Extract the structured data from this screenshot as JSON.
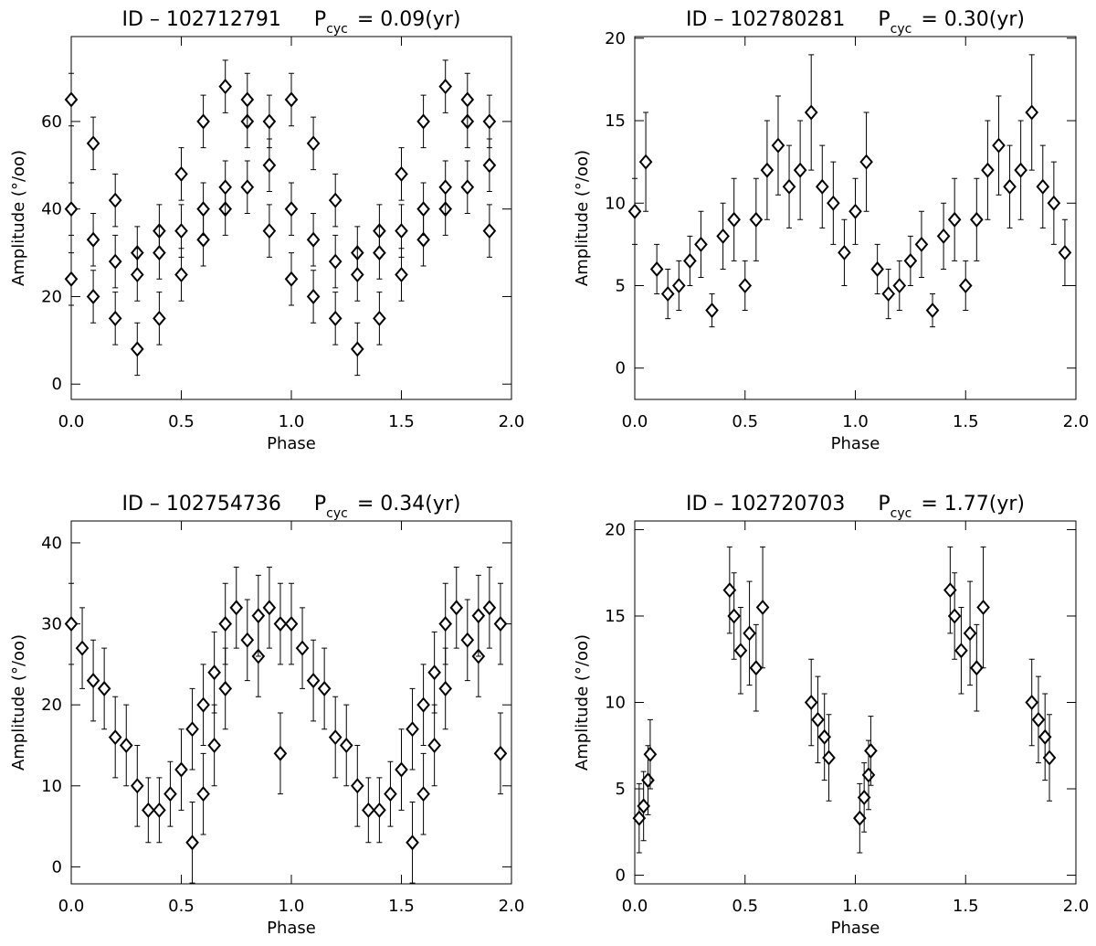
{
  "chart_data": [
    {
      "type": "scatter",
      "title_id": "ID – 102712791",
      "title_p": "P",
      "title_sub": "cyc",
      "title_value": "=  0.09(yr)",
      "xlabel": "Phase",
      "ylabel": "Amplitude (°/oo)",
      "color": "#000000",
      "xlim": [
        0,
        2
      ],
      "ylim": [
        -3.5,
        79.4
      ],
      "xticks": [
        {
          "value": 0,
          "label": "0.0"
        },
        {
          "value": 0.5,
          "label": "0.5"
        },
        {
          "value": 1,
          "label": "1.0"
        },
        {
          "value": 1.5,
          "label": "1.5"
        },
        {
          "value": 2,
          "label": "2.0"
        }
      ],
      "yticks": [
        0,
        20,
        40,
        60
      ],
      "x": [
        0.0,
        0.1,
        0.2,
        0.3,
        0.4,
        0.5,
        0.6,
        0.7,
        0.8,
        0.9,
        0.0,
        0.1,
        0.2,
        0.3,
        0.4,
        0.5,
        0.6,
        0.7,
        0.8,
        0.9,
        0.0,
        0.1,
        0.2,
        0.3,
        0.4,
        0.5,
        0.6,
        0.7,
        0.8,
        0.9,
        1.0,
        1.1,
        1.2,
        1.3,
        1.4,
        1.5,
        1.6,
        1.7,
        1.8,
        1.9,
        1.0,
        1.1,
        1.2,
        1.3,
        1.4,
        1.5,
        1.6,
        1.7,
        1.8,
        1.9,
        1.0,
        1.1,
        1.2,
        1.3,
        1.4,
        1.5,
        1.6,
        1.7,
        1.8,
        1.9
      ],
      "values": [
        65,
        55,
        42,
        30,
        35,
        48,
        60,
        68,
        60,
        50,
        24,
        20,
        15,
        8,
        15,
        25,
        33,
        40,
        45,
        35,
        40,
        33,
        28,
        25,
        30,
        35,
        40,
        45,
        65,
        60,
        65,
        55,
        42,
        30,
        35,
        48,
        60,
        68,
        60,
        50,
        24,
        20,
        15,
        8,
        15,
        25,
        33,
        40,
        45,
        35,
        40,
        33,
        28,
        25,
        30,
        35,
        40,
        45,
        65,
        60
      ],
      "errors": [
        6,
        6,
        6,
        6,
        6,
        6,
        6,
        6,
        6,
        6,
        6,
        6,
        6,
        6,
        6,
        6,
        6,
        6,
        6,
        6,
        6,
        6,
        6,
        6,
        6,
        6,
        6,
        6,
        6,
        6,
        6,
        6,
        6,
        6,
        6,
        6,
        6,
        6,
        6,
        6,
        6,
        6,
        6,
        6,
        6,
        6,
        6,
        6,
        6,
        6,
        6,
        6,
        6,
        6,
        6,
        6,
        6,
        6,
        6,
        6
      ]
    },
    {
      "type": "scatter",
      "title_id": "ID – 102780281",
      "title_p": "P",
      "title_sub": "cyc",
      "title_value": "=  0.30(yr)",
      "xlabel": "Phase",
      "ylabel": "Amplitude (°/oo)",
      "color": "#000000",
      "xlim": [
        0,
        2
      ],
      "ylim": [
        -1.9,
        20.1
      ],
      "xticks": [
        {
          "value": 0,
          "label": "0.0"
        },
        {
          "value": 0.5,
          "label": "0.5"
        },
        {
          "value": 1,
          "label": "1.0"
        },
        {
          "value": 1.5,
          "label": "1.5"
        },
        {
          "value": 2,
          "label": "2.0"
        }
      ],
      "yticks": [
        0,
        5,
        10,
        15,
        20
      ],
      "x": [
        0.0,
        0.05,
        0.1,
        0.15,
        0.2,
        0.25,
        0.3,
        0.35,
        0.4,
        0.45,
        0.5,
        0.55,
        0.6,
        0.65,
        0.7,
        0.75,
        0.8,
        0.85,
        0.9,
        0.95,
        1.0,
        1.05,
        1.1,
        1.15,
        1.2,
        1.25,
        1.3,
        1.35,
        1.4,
        1.45,
        1.5,
        1.55,
        1.6,
        1.65,
        1.7,
        1.75,
        1.8,
        1.85,
        1.9,
        1.95
      ],
      "values": [
        9.5,
        12.5,
        6,
        4.5,
        5,
        6.5,
        7.5,
        3.5,
        8,
        9,
        5,
        9,
        12,
        13.5,
        11,
        12,
        15.5,
        11,
        10,
        7,
        9.5,
        12.5,
        6,
        4.5,
        5,
        6.5,
        7.5,
        3.5,
        8,
        9,
        5,
        9,
        12,
        13.5,
        11,
        12,
        15.5,
        11,
        10,
        7
      ],
      "errors": [
        2,
        3,
        1.5,
        1.5,
        1.5,
        1.5,
        2,
        1,
        2,
        2.5,
        1.5,
        2.5,
        3,
        3,
        2.5,
        3,
        3.5,
        2.5,
        2.5,
        2,
        2,
        3,
        1.5,
        1.5,
        1.5,
        1.5,
        2,
        1,
        2,
        2.5,
        1.5,
        2.5,
        3,
        3,
        2.5,
        3,
        3.5,
        2.5,
        2.5,
        2
      ]
    },
    {
      "type": "scatter",
      "title_id": "ID – 102754736",
      "title_p": "P",
      "title_sub": "cyc",
      "title_value": "=  0.34(yr)",
      "xlabel": "Phase",
      "ylabel": "Amplitude (°/oo)",
      "color": "#000000",
      "xlim": [
        0,
        2
      ],
      "ylim": [
        -2.1,
        42.7
      ],
      "xticks": [
        {
          "value": 0,
          "label": "0.0"
        },
        {
          "value": 0.5,
          "label": "0.5"
        },
        {
          "value": 1,
          "label": "1.0"
        },
        {
          "value": 1.5,
          "label": "1.5"
        },
        {
          "value": 2,
          "label": "2.0"
        }
      ],
      "yticks": [
        0,
        10,
        20,
        30,
        40
      ],
      "x": [
        0.0,
        0.05,
        0.1,
        0.15,
        0.2,
        0.25,
        0.3,
        0.35,
        0.4,
        0.45,
        0.5,
        0.55,
        0.6,
        0.65,
        0.7,
        0.75,
        0.8,
        0.85,
        0.9,
        0.95,
        0.55,
        0.6,
        0.65,
        0.7,
        0.85,
        0.95,
        1.0,
        1.05,
        1.1,
        1.15,
        1.2,
        1.25,
        1.3,
        1.35,
        1.4,
        1.45,
        1.5,
        1.55,
        1.6,
        1.65,
        1.7,
        1.75,
        1.8,
        1.85,
        1.9,
        1.95,
        1.55,
        1.6,
        1.65,
        1.7,
        1.85,
        1.95
      ],
      "values": [
        30,
        27,
        23,
        22,
        16,
        15,
        10,
        7,
        7,
        9,
        12,
        3,
        9,
        15,
        22,
        32,
        28,
        26,
        32,
        14,
        17,
        20,
        24,
        30,
        31,
        30,
        30,
        27,
        23,
        22,
        16,
        15,
        10,
        7,
        7,
        9,
        12,
        3,
        9,
        15,
        22,
        32,
        28,
        26,
        32,
        14,
        17,
        20,
        24,
        30,
        31,
        30
      ],
      "errors": [
        5,
        5,
        5,
        5,
        5,
        5,
        5,
        4,
        4,
        4,
        5,
        5,
        5,
        5,
        5,
        5,
        5,
        5,
        5,
        5,
        5,
        5,
        5,
        5,
        5,
        5,
        5,
        5,
        5,
        5,
        5,
        5,
        5,
        4,
        4,
        4,
        5,
        5,
        5,
        5,
        5,
        5,
        5,
        5,
        5,
        5,
        5,
        5,
        5,
        5,
        5,
        5
      ]
    },
    {
      "type": "scatter",
      "title_id": "ID – 102720703",
      "title_p": "P",
      "title_sub": "cyc",
      "title_value": "=  1.77(yr)",
      "xlabel": "Phase",
      "ylabel": "Amplitude (°/oo)",
      "color": "#000000",
      "xlim": [
        0,
        2
      ],
      "ylim": [
        -0.5,
        20.5
      ],
      "xticks": [
        {
          "value": 0,
          "label": "0.0"
        },
        {
          "value": 0.5,
          "label": "0.5"
        },
        {
          "value": 1,
          "label": "1.0"
        },
        {
          "value": 1.5,
          "label": "1.5"
        },
        {
          "value": 2,
          "label": "2.0"
        }
      ],
      "yticks": [
        0,
        5,
        10,
        15,
        20
      ],
      "x": [
        0.02,
        0.04,
        0.06,
        0.07,
        0.43,
        0.45,
        0.48,
        0.52,
        0.55,
        0.58,
        0.8,
        0.83,
        0.86,
        0.88,
        1.02,
        1.04,
        1.06,
        1.07,
        1.43,
        1.45,
        1.48,
        1.52,
        1.55,
        1.58,
        1.8,
        1.83,
        1.86,
        1.88
      ],
      "values": [
        3.3,
        4,
        5.5,
        7,
        16.5,
        15,
        13,
        14,
        12,
        15.5,
        10,
        9,
        8,
        6.8,
        3.3,
        4.5,
        5.8,
        7.2,
        16.5,
        15,
        13,
        14,
        12,
        15.5,
        10,
        9,
        8,
        6.8
      ],
      "errors": [
        2,
        2,
        2,
        2,
        2.5,
        2.5,
        2.5,
        3,
        2.5,
        3.5,
        2.5,
        2.5,
        2.5,
        2.5,
        2,
        2,
        2,
        2,
        2.5,
        2.5,
        2.5,
        3,
        2.5,
        3.5,
        2.5,
        2.5,
        2.5,
        2.5
      ]
    }
  ]
}
